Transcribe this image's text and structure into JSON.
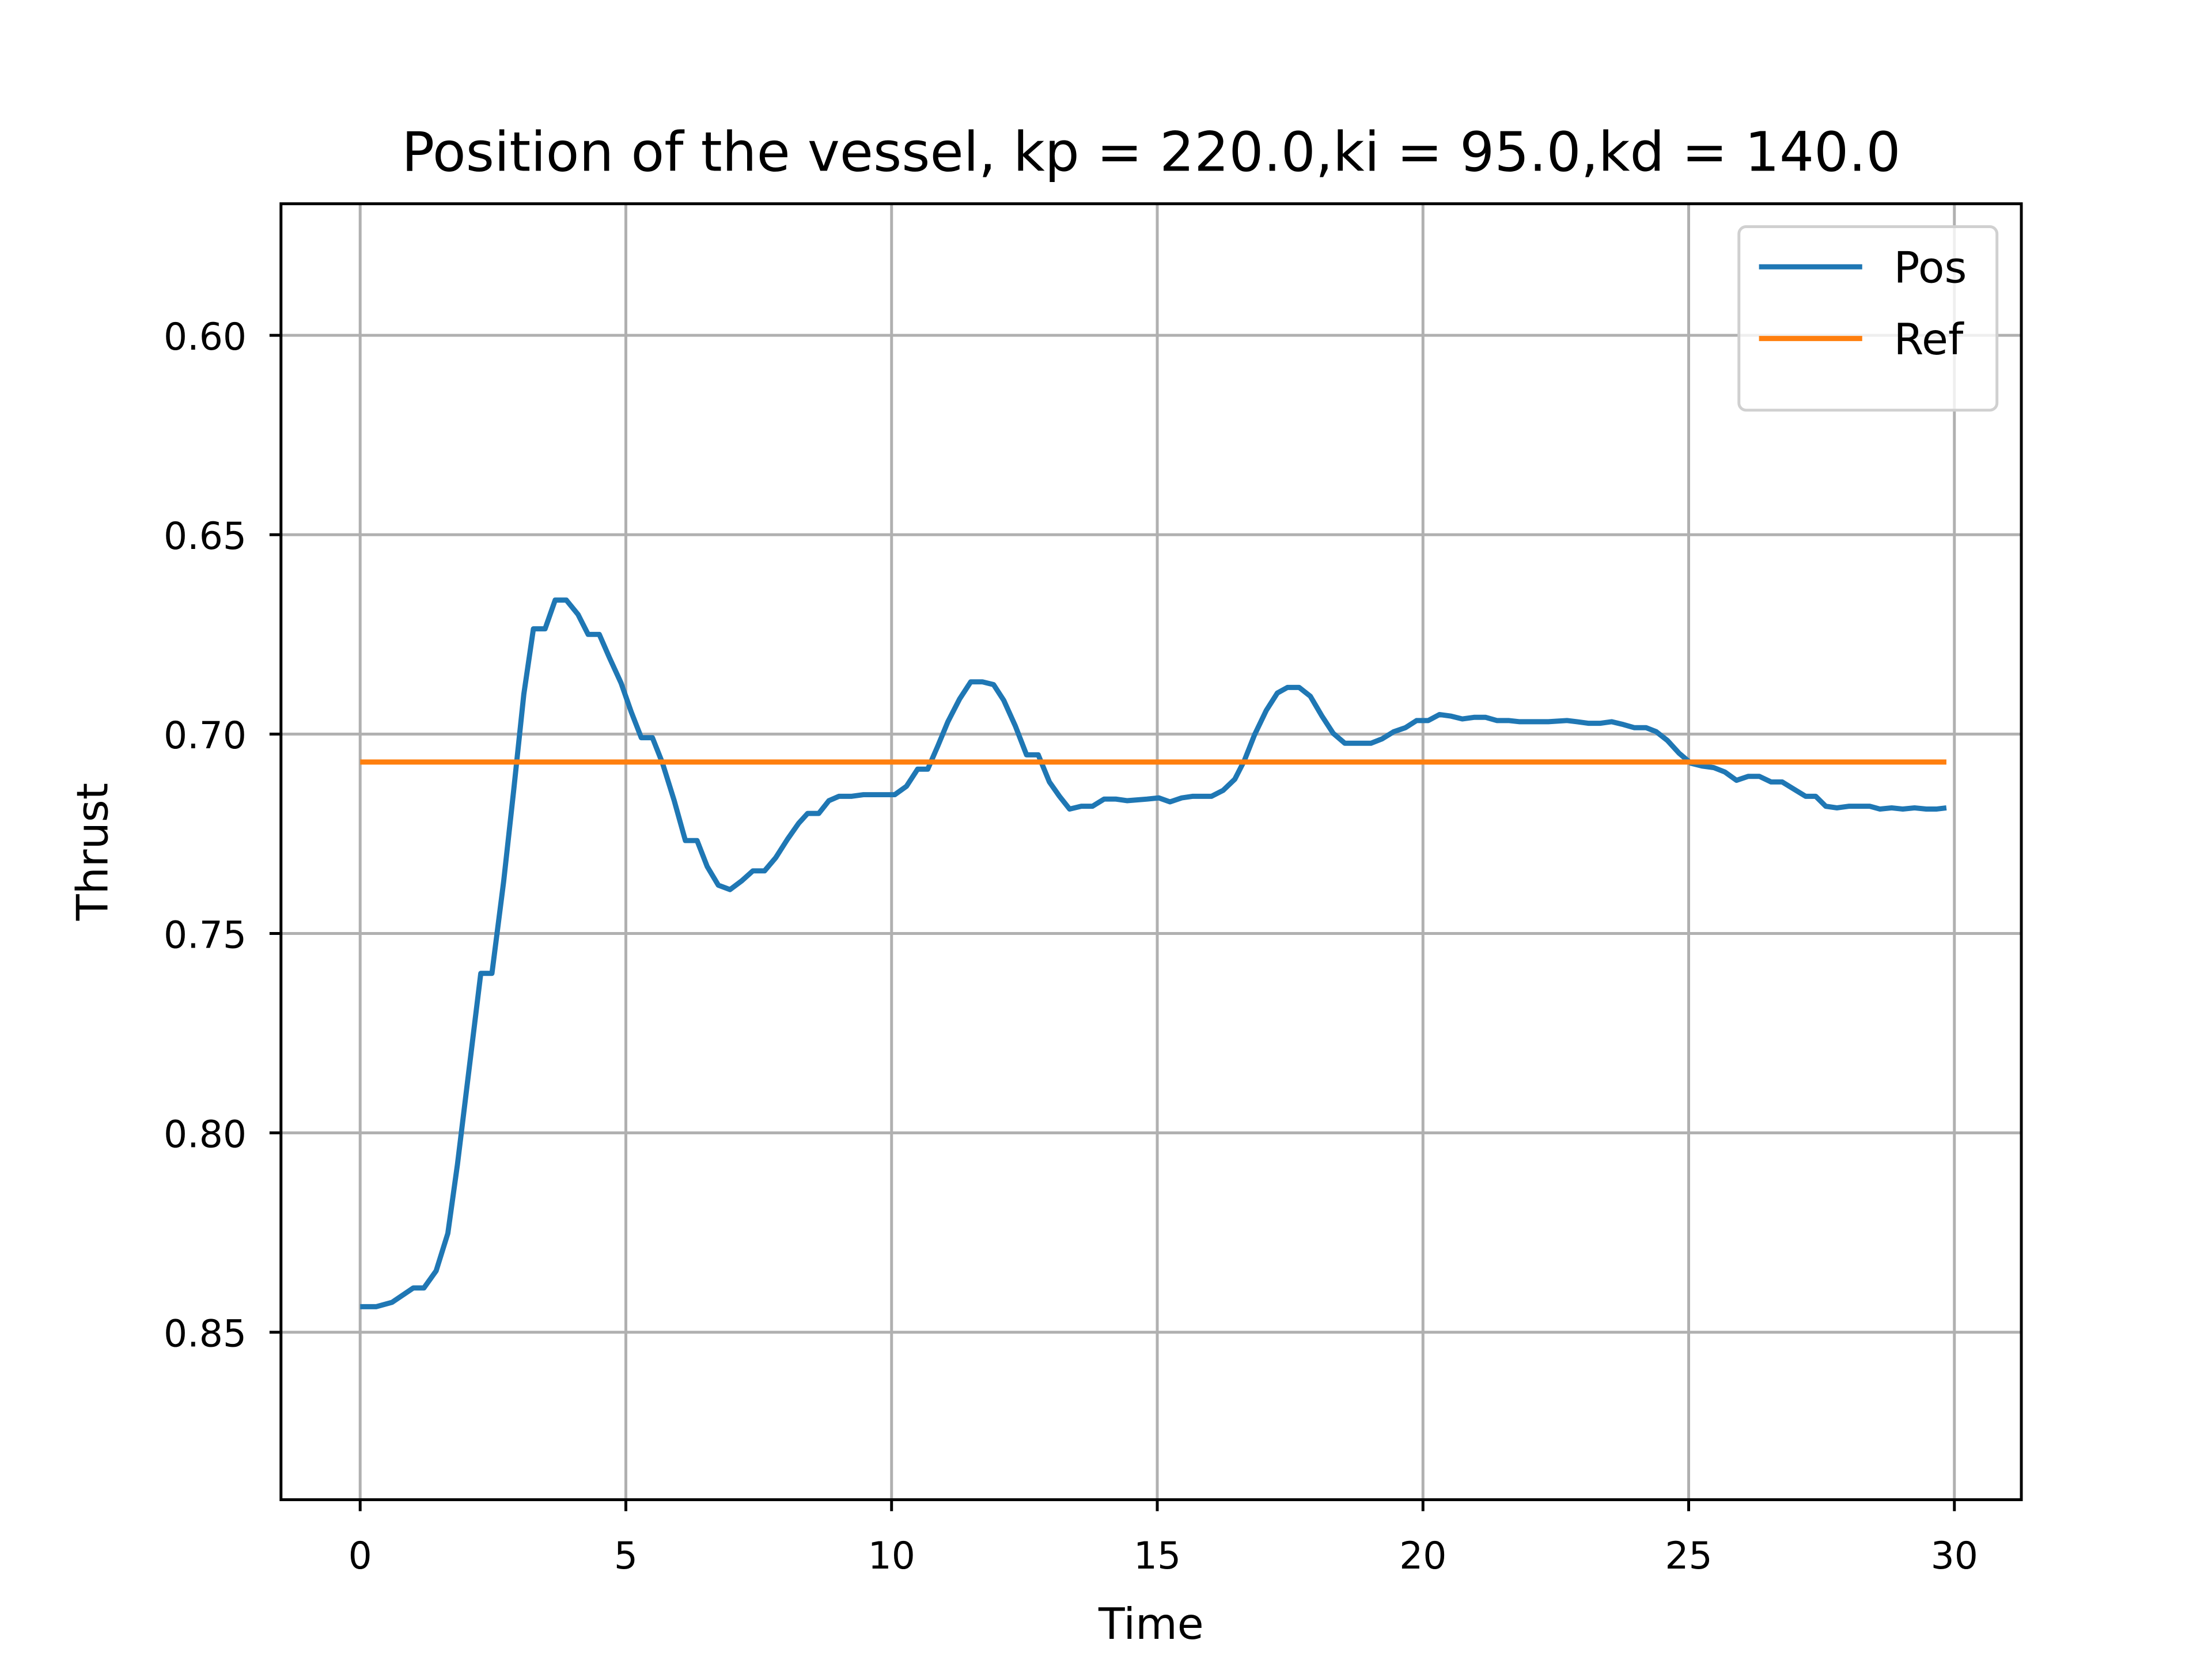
{
  "chart_data": {
    "type": "line",
    "title": "Position of the vessel, kp = 220.0,ki = 95.0,kd = 140.0",
    "x_label": "Time",
    "y_label": "Thrust",
    "xlim": [
      -1.49,
      31.26
    ],
    "xticks": [
      0,
      5,
      10,
      15,
      20,
      25,
      30
    ],
    "ylim": [
      0.892,
      0.567
    ],
    "yticks": [
      0.6,
      0.65,
      0.7,
      0.75,
      0.8,
      0.85
    ],
    "y_tick_labels": [
      "0.60",
      "0.65",
      "0.70",
      "0.75",
      "0.80",
      "0.85"
    ],
    "grid": true,
    "legend": "upper right",
    "series": [
      {
        "name": "Pos",
        "color": "#1f77b4",
        "x": [
          0,
          0.3,
          0.6,
          1.0,
          1.2,
          1.43,
          1.65,
          1.83,
          2.05,
          2.27,
          2.48,
          2.7,
          2.89,
          3.08,
          3.26,
          3.48,
          3.67,
          3.88,
          4.1,
          4.29,
          4.5,
          4.69,
          4.91,
          5.1,
          5.29,
          5.5,
          5.69,
          5.91,
          6.12,
          6.34,
          6.53,
          6.74,
          6.96,
          7.18,
          7.39,
          7.61,
          7.82,
          8.04,
          8.25,
          8.42,
          8.63,
          8.82,
          9.01,
          9.25,
          9.47,
          9.82,
          10.06,
          10.28,
          10.49,
          10.68,
          10.87,
          11.06,
          11.28,
          11.49,
          11.71,
          11.92,
          12.11,
          12.33,
          12.54,
          12.76,
          12.97,
          13.16,
          13.35,
          13.57,
          13.78,
          14.0,
          14.22,
          14.43,
          14.81,
          15.03,
          15.24,
          15.46,
          15.67,
          16.02,
          16.24,
          16.46,
          16.64,
          16.83,
          17.05,
          17.26,
          17.45,
          17.67,
          17.88,
          18.1,
          18.31,
          18.53,
          18.75,
          19.02,
          19.23,
          19.45,
          19.67,
          19.88,
          20.1,
          20.31,
          20.53,
          20.74,
          20.96,
          21.18,
          21.39,
          21.61,
          21.82,
          22.36,
          22.71,
          22.9,
          23.12,
          23.33,
          23.55,
          23.77,
          23.98,
          24.2,
          24.39,
          24.6,
          24.82,
          25.04,
          25.25,
          25.47,
          25.68,
          25.9,
          26.12,
          26.33,
          26.55,
          26.76,
          26.98,
          27.2,
          27.39,
          27.58,
          27.79,
          28.01,
          28.41,
          28.6,
          28.82,
          29.03,
          29.25,
          29.47,
          29.66,
          29.85
        ],
        "values": [
          0.8436,
          0.8436,
          0.8425,
          0.8389,
          0.8389,
          0.8346,
          0.8252,
          0.808,
          0.784,
          0.76,
          0.76,
          0.737,
          0.714,
          0.69,
          0.6736,
          0.6736,
          0.6664,
          0.6664,
          0.67,
          0.675,
          0.675,
          0.6808,
          0.6872,
          0.6944,
          0.7009,
          0.7009,
          0.7073,
          0.7167,
          0.7267,
          0.7267,
          0.7332,
          0.7379,
          0.739,
          0.7368,
          0.7343,
          0.7343,
          0.731,
          0.7264,
          0.7224,
          0.7199,
          0.7199,
          0.7167,
          0.7156,
          0.7156,
          0.7152,
          0.7152,
          0.7152,
          0.7131,
          0.7088,
          0.7088,
          0.703,
          0.6969,
          0.6912,
          0.6869,
          0.6869,
          0.6876,
          0.6915,
          0.698,
          0.7052,
          0.7052,
          0.712,
          0.7156,
          0.7188,
          0.7181,
          0.7181,
          0.7163,
          0.7163,
          0.7167,
          0.7163,
          0.716,
          0.717,
          0.716,
          0.7156,
          0.7156,
          0.7141,
          0.7113,
          0.7066,
          0.7002,
          0.6941,
          0.6897,
          0.6883,
          0.6883,
          0.6905,
          0.6955,
          0.6998,
          0.7023,
          0.7023,
          0.7023,
          0.7012,
          0.6994,
          0.6984,
          0.6966,
          0.6966,
          0.6951,
          0.6955,
          0.6962,
          0.6958,
          0.6958,
          0.6966,
          0.6966,
          0.6969,
          0.6969,
          0.6966,
          0.6969,
          0.6973,
          0.6973,
          0.6969,
          0.6976,
          0.6984,
          0.6984,
          0.6994,
          0.7016,
          0.7048,
          0.7073,
          0.708,
          0.7084,
          0.7095,
          0.7116,
          0.7106,
          0.7106,
          0.712,
          0.712,
          0.7138,
          0.7156,
          0.7156,
          0.7181,
          0.7185,
          0.7181,
          0.7181,
          0.7188,
          0.7185,
          0.7188,
          0.7185,
          0.7188,
          0.7188,
          0.7185
        ]
      },
      {
        "name": "Ref",
        "color": "#ff7f0e",
        "x": [
          0,
          29.85
        ],
        "values": [
          0.707,
          0.707
        ]
      }
    ]
  }
}
